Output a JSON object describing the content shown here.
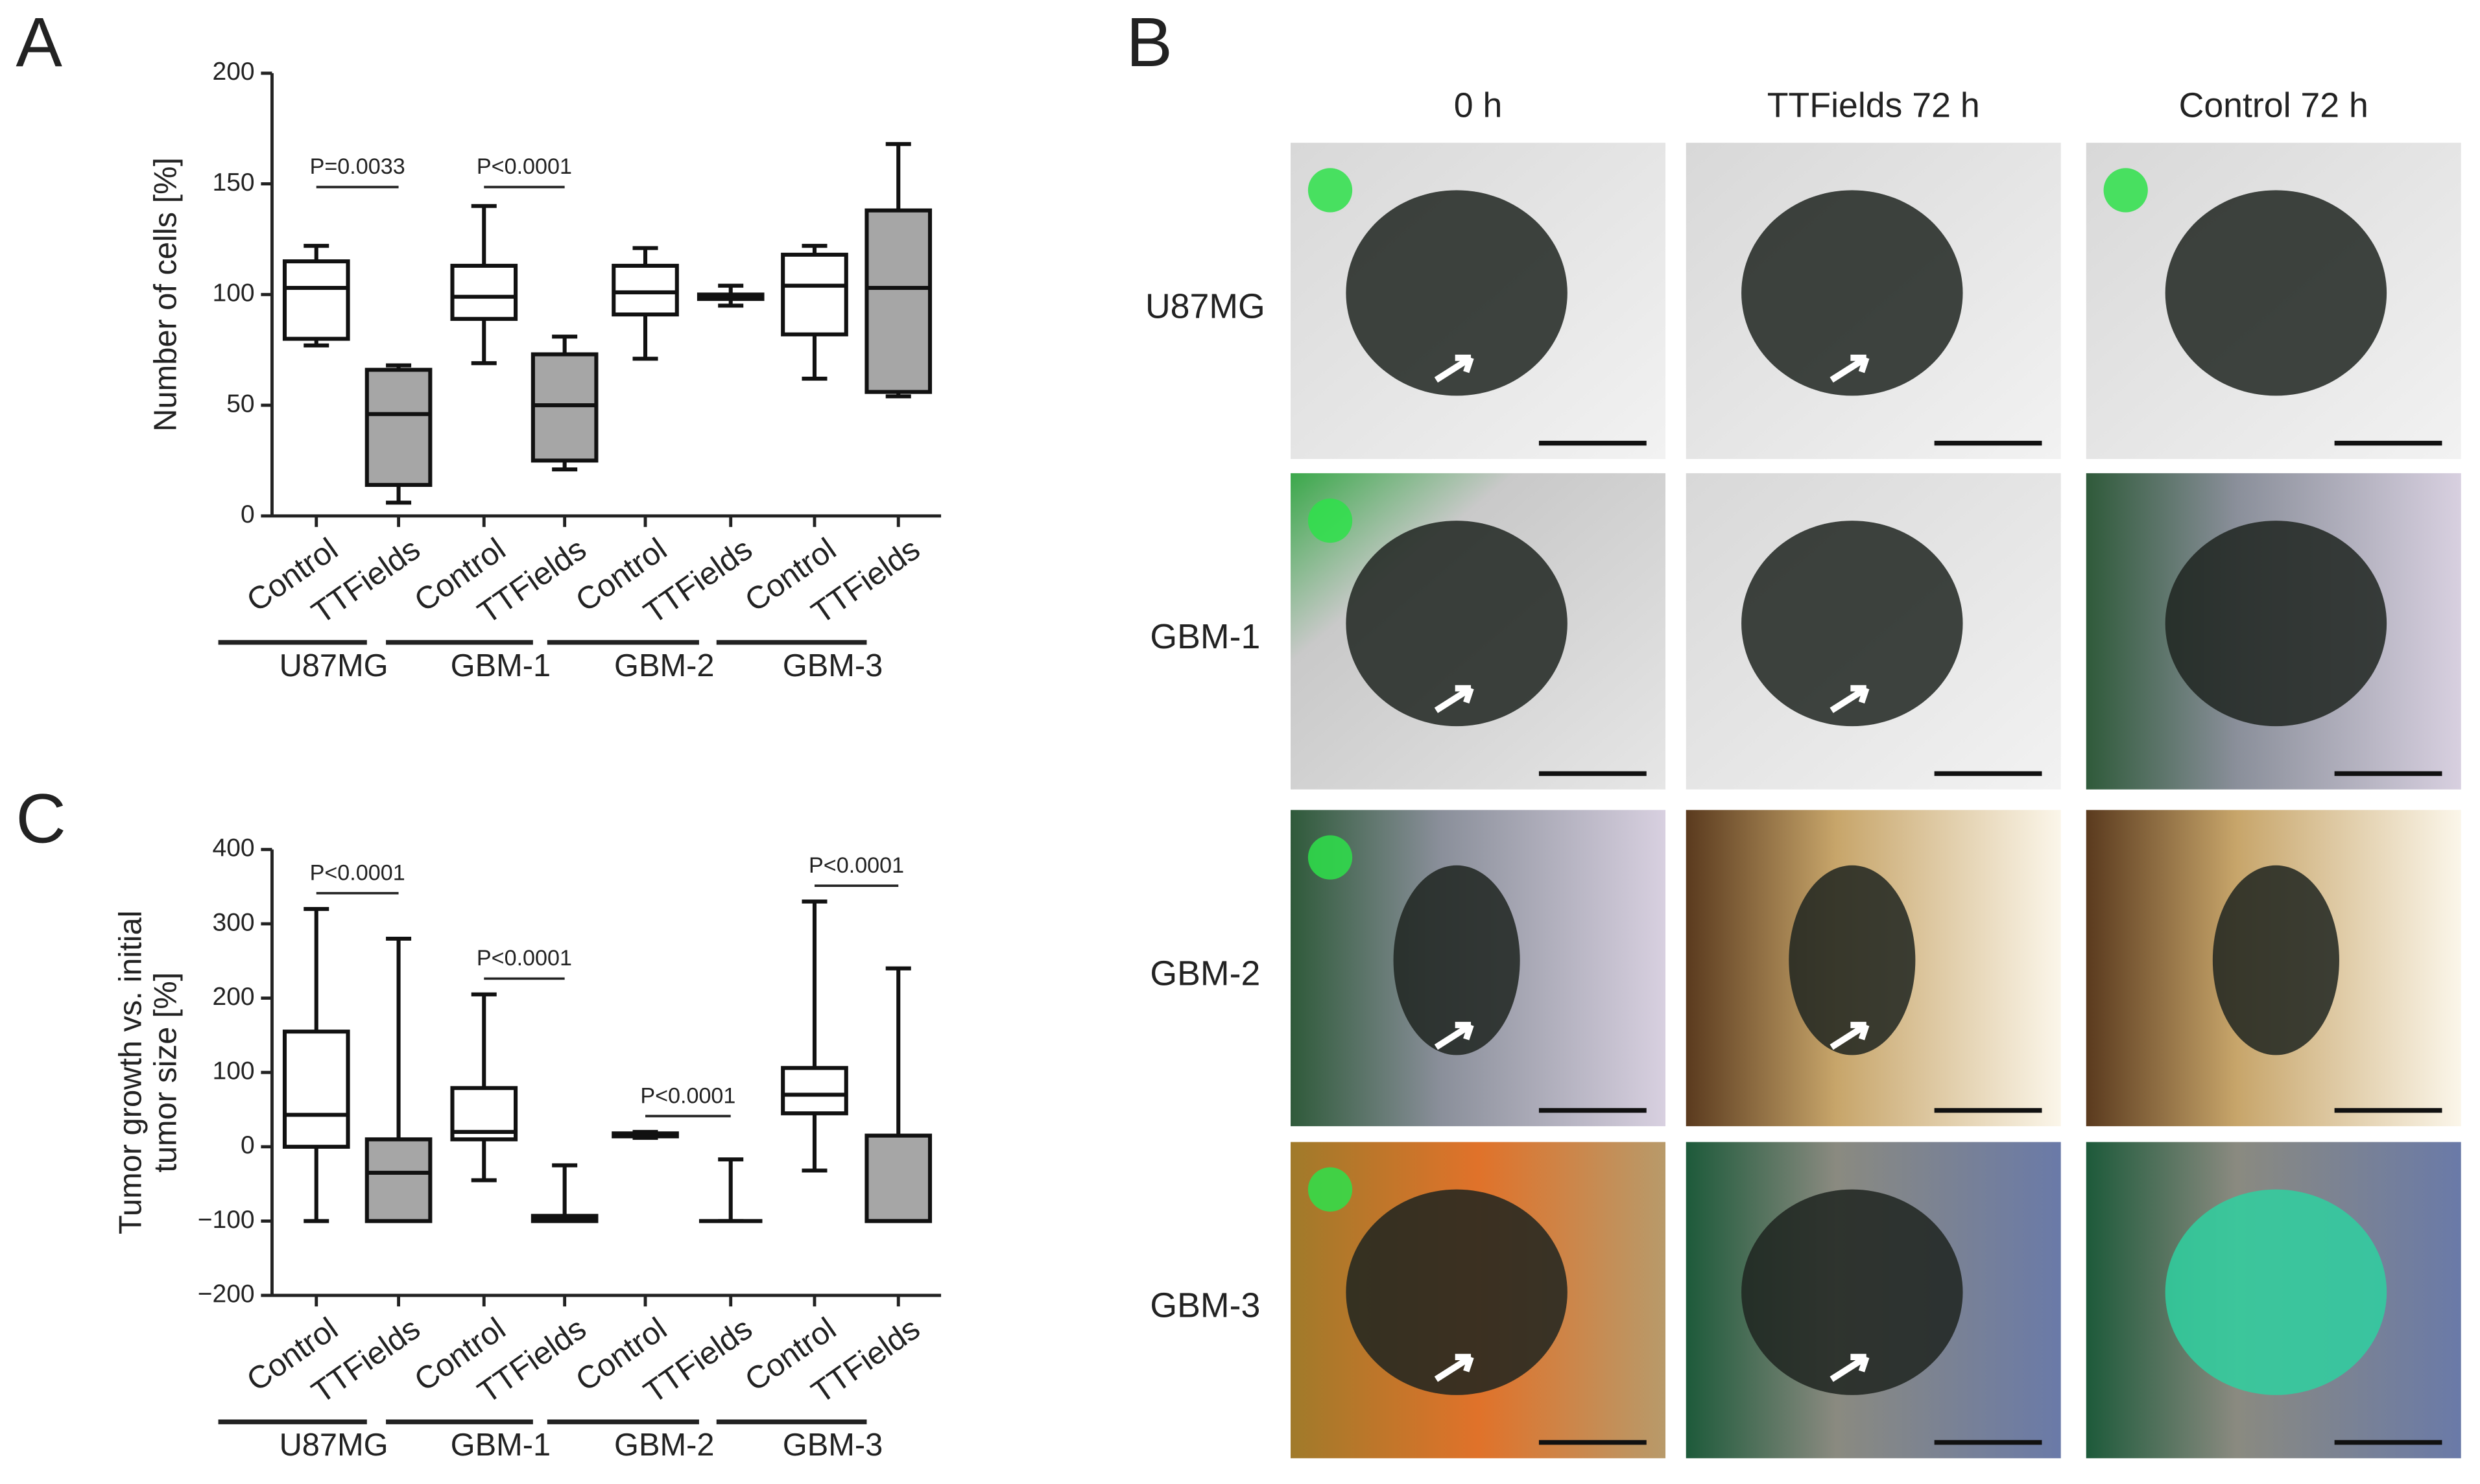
{
  "chart_data": [
    {
      "type": "box",
      "panel": "A",
      "ylabel": [
        "Number of cells [%]"
      ],
      "categories": [
        "Control",
        "TTFields",
        "Control",
        "TTFields",
        "Control",
        "TTFields",
        "Control",
        "TTFields"
      ],
      "groups": [
        "U87MG",
        "GBM-1",
        "GBM-2",
        "GBM-3"
      ],
      "colors": [
        "#ffffff",
        "#a6a6a6"
      ],
      "boxes": [
        {
          "min": 77,
          "q1": 80,
          "median": 103,
          "q3": 115,
          "max": 122
        },
        {
          "min": 6,
          "q1": 14,
          "median": 46,
          "q3": 66,
          "max": 68
        },
        {
          "min": 69,
          "q1": 89,
          "median": 99,
          "q3": 113,
          "max": 140
        },
        {
          "min": 21,
          "q1": 25,
          "median": 50,
          "q3": 73,
          "max": 81
        },
        {
          "min": 71,
          "q1": 91,
          "median": 101,
          "q3": 113,
          "max": 121
        },
        {
          "min": 95,
          "q1": 98,
          "median": 99,
          "q3": 100,
          "max": 104
        },
        {
          "min": 62,
          "q1": 82,
          "median": 104,
          "q3": 118,
          "max": 122
        },
        {
          "min": 54,
          "q1": 56,
          "median": 103,
          "q3": 138,
          "max": 168
        }
      ],
      "annotations": [
        {
          "text": "P=0.0033",
          "boxes": [
            0,
            1
          ]
        },
        {
          "text": "P<0.0001",
          "boxes": [
            2,
            3
          ]
        }
      ],
      "ylim": [
        0,
        200
      ],
      "yticks": [
        0,
        50,
        100,
        150,
        200
      ]
    },
    {
      "type": "box",
      "panel": "C",
      "ylabel": [
        "Tumor growth vs. initial",
        "tumor size [%]"
      ],
      "categories": [
        "Control",
        "TTFields",
        "Control",
        "TTFields",
        "Control",
        "TTFields",
        "Control",
        "TTFields"
      ],
      "groups": [
        "U87MG",
        "GBM-1",
        "GBM-2",
        "GBM-3"
      ],
      "colors": [
        "#ffffff",
        "#a6a6a6"
      ],
      "boxes": [
        {
          "min": -100,
          "q1": 0,
          "median": 43,
          "q3": 155,
          "max": 320
        },
        {
          "min": -100,
          "q1": -100,
          "median": -35,
          "q3": 10,
          "max": 280
        },
        {
          "min": -45,
          "q1": 10,
          "median": 20,
          "q3": 79,
          "max": 205
        },
        {
          "min": -100,
          "q1": -100,
          "median": -97,
          "q3": -93,
          "max": -25
        },
        {
          "min": 12,
          "q1": 14,
          "median": 16,
          "q3": 18,
          "max": 20
        },
        {
          "min": -100,
          "q1": -100,
          "median": -100,
          "q3": -100,
          "max": -17
        },
        {
          "min": -32,
          "q1": 45,
          "median": 70,
          "q3": 106,
          "max": 330
        },
        {
          "min": -100,
          "q1": -100,
          "median": -100,
          "q3": 15,
          "max": 240
        }
      ],
      "annotations": [
        {
          "text": "P<0.0001",
          "boxes": [
            0,
            1
          ]
        },
        {
          "text": "P<0.0001",
          "boxes": [
            2,
            3
          ]
        },
        {
          "text": "P<0.0001",
          "boxes": [
            4,
            5
          ]
        },
        {
          "text": "P<0.0001",
          "boxes": [
            6,
            7
          ]
        }
      ],
      "ylim": [
        -200,
        400
      ],
      "yticks": [
        {
          "value": -200,
          "label": "−200"
        },
        {
          "value": -100,
          "label": "−100"
        },
        0,
        100,
        200,
        300,
        400
      ]
    }
  ],
  "images": {
    "panel": "B",
    "columns": [
      "0 h",
      "TTFields 72 h",
      "Control 72 h"
    ],
    "rows": [
      "U87MG",
      "GBM-1",
      "GBM-2",
      "GBM-3"
    ]
  }
}
